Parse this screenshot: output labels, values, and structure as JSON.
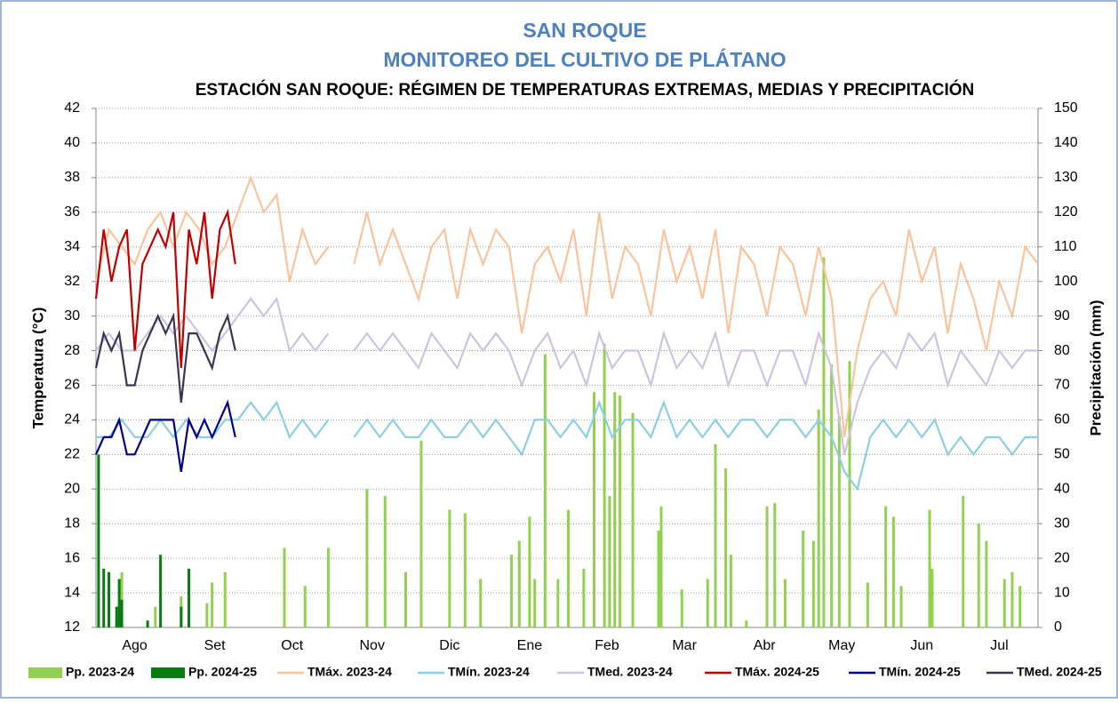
{
  "chart_data": {
    "type": "line",
    "title": "SAN ROQUE",
    "subtitle": "MONITOREO DEL CULTIVO DE PLÁTANO",
    "heading": "ESTACIÓN SAN ROQUE: RÉGIMEN DE TEMPERATURAS EXTREMAS, MEDIAS Y PRECIPITACIÓN",
    "ylabel": "Temperatura (°C)",
    "y2label": "Precipitación (mm)",
    "xlim": [
      0,
      365
    ],
    "xticks": [
      {
        "value": 15,
        "label": "Ago"
      },
      {
        "value": 46,
        "label": "Set"
      },
      {
        "value": 76,
        "label": "Oct"
      },
      {
        "value": 107,
        "label": "Nov"
      },
      {
        "value": 137,
        "label": "Dic"
      },
      {
        "value": 168,
        "label": "Ene"
      },
      {
        "value": 198,
        "label": "Feb"
      },
      {
        "value": 228,
        "label": "Mar"
      },
      {
        "value": 259,
        "label": "Abr"
      },
      {
        "value": 289,
        "label": "May"
      },
      {
        "value": 320,
        "label": "Jun"
      },
      {
        "value": 350,
        "label": "Jul"
      }
    ],
    "ylim": [
      12,
      42
    ],
    "yticks": [
      12,
      14,
      16,
      18,
      20,
      22,
      24,
      26,
      28,
      30,
      32,
      34,
      36,
      38,
      40,
      42
    ],
    "y2lim": [
      0,
      150
    ],
    "y2ticks": [
      0,
      10,
      20,
      30,
      40,
      50,
      60,
      70,
      80,
      90,
      100,
      110,
      120,
      130,
      140,
      150
    ],
    "grid": true,
    "series": [
      {
        "name": "Pp. 2023-24",
        "type": "bar",
        "axis": "y2",
        "color": "#92d050",
        "x": [
          8,
          10,
          23,
          33,
          43,
          45,
          50,
          73,
          81,
          90,
          105,
          112,
          120,
          126,
          137,
          143,
          149,
          161,
          164,
          168,
          170,
          174,
          179,
          183,
          189,
          193,
          197,
          199,
          201,
          203,
          208,
          218,
          219,
          227,
          237,
          240,
          244,
          246,
          252,
          260,
          263,
          267,
          274,
          278,
          280,
          282,
          285,
          288,
          292,
          299,
          306,
          309,
          312,
          323,
          324,
          336,
          342,
          345,
          352,
          355,
          358
        ],
        "values": [
          2,
          16,
          6,
          9,
          7,
          13,
          16,
          23,
          12,
          23,
          40,
          38,
          16,
          54,
          34,
          33,
          14,
          21,
          25,
          32,
          14,
          79,
          14,
          34,
          17,
          68,
          82,
          38,
          68,
          67,
          62,
          28,
          35,
          11,
          14,
          53,
          46,
          21,
          2,
          35,
          36,
          14,
          28,
          25,
          63,
          107,
          76,
          61,
          77,
          13,
          35,
          32,
          12,
          34,
          17,
          38,
          30,
          25,
          14,
          16,
          12
        ]
      },
      {
        "name": "Pp. 2024-25",
        "type": "bar",
        "axis": "y2",
        "color": "#0a7a12",
        "x": [
          1,
          3,
          5,
          8,
          9,
          10,
          20,
          25,
          33,
          36
        ],
        "values": [
          50,
          17,
          16,
          6,
          14,
          8,
          2,
          21,
          6,
          17
        ]
      },
      {
        "name": "TMáx. 2023-24",
        "type": "line",
        "color": "#f9c49c",
        "x": [
          0,
          5,
          10,
          15,
          20,
          25,
          30,
          35,
          40,
          45,
          50,
          55,
          60,
          65,
          70,
          75,
          80,
          85,
          90,
          95,
          100,
          105,
          110,
          115,
          120,
          125,
          130,
          135,
          140,
          145,
          150,
          155,
          160,
          165,
          170,
          175,
          180,
          185,
          190,
          195,
          200,
          205,
          210,
          215,
          220,
          225,
          230,
          235,
          240,
          245,
          250,
          255,
          260,
          265,
          270,
          275,
          280,
          285,
          290,
          295,
          300,
          305,
          310,
          315,
          320,
          325,
          330,
          335,
          340,
          345,
          350,
          355,
          360,
          365
        ],
        "values": [
          32,
          35,
          34,
          33,
          35,
          36,
          34,
          36,
          35,
          33,
          34,
          36,
          38,
          36,
          37,
          32,
          35,
          33,
          34,
          null,
          33,
          36,
          33,
          35,
          33,
          31,
          34,
          35,
          31,
          35,
          33,
          35,
          34,
          29,
          33,
          34,
          32,
          35,
          30,
          36,
          31,
          34,
          33,
          30,
          35,
          32,
          34,
          31,
          35,
          29,
          34,
          33,
          30,
          34,
          33,
          30,
          34,
          31,
          23,
          28,
          31,
          32,
          30,
          35,
          32,
          34,
          29,
          33,
          31,
          28,
          32,
          30,
          34,
          33
        ]
      },
      {
        "name": "TMín. 2023-24",
        "type": "line",
        "color": "#8ccfe0",
        "x": [
          0,
          5,
          10,
          15,
          20,
          25,
          30,
          35,
          40,
          45,
          50,
          55,
          60,
          65,
          70,
          75,
          80,
          85,
          90,
          95,
          100,
          105,
          110,
          115,
          120,
          125,
          130,
          135,
          140,
          145,
          150,
          155,
          160,
          165,
          170,
          175,
          180,
          185,
          190,
          195,
          200,
          205,
          210,
          215,
          220,
          225,
          230,
          235,
          240,
          245,
          250,
          255,
          260,
          265,
          270,
          275,
          280,
          285,
          290,
          295,
          300,
          305,
          310,
          315,
          320,
          325,
          330,
          335,
          340,
          345,
          350,
          355,
          360,
          365
        ],
        "values": [
          23,
          23,
          24,
          23,
          23,
          24,
          23,
          24,
          23,
          23,
          24,
          24,
          25,
          24,
          25,
          23,
          24,
          23,
          24,
          null,
          23,
          24,
          23,
          24,
          23,
          23,
          24,
          23,
          23,
          24,
          23,
          24,
          23,
          22,
          24,
          24,
          23,
          24,
          23,
          25,
          23,
          24,
          24,
          23,
          25,
          23,
          24,
          23,
          24,
          23,
          24,
          24,
          23,
          24,
          24,
          23,
          24,
          23,
          21,
          20,
          23,
          24,
          23,
          24,
          23,
          24,
          22,
          23,
          22,
          23,
          23,
          22,
          23,
          23
        ]
      },
      {
        "name": "TMed. 2023-24",
        "type": "line",
        "color": "#cdc3df",
        "x": [
          0,
          5,
          10,
          15,
          20,
          25,
          30,
          35,
          40,
          45,
          50,
          55,
          60,
          65,
          70,
          75,
          80,
          85,
          90,
          95,
          100,
          105,
          110,
          115,
          120,
          125,
          130,
          135,
          140,
          145,
          150,
          155,
          160,
          165,
          170,
          175,
          180,
          185,
          190,
          195,
          200,
          205,
          210,
          215,
          220,
          225,
          230,
          235,
          240,
          245,
          250,
          255,
          260,
          265,
          270,
          275,
          280,
          285,
          290,
          295,
          300,
          305,
          310,
          315,
          320,
          325,
          330,
          335,
          340,
          345,
          350,
          355,
          360,
          365
        ],
        "values": [
          28,
          29,
          28,
          28,
          29,
          30,
          29,
          30,
          29,
          28,
          29,
          30,
          31,
          30,
          31,
          28,
          29,
          28,
          29,
          null,
          28,
          29,
          28,
          29,
          28,
          27,
          29,
          28,
          27,
          29,
          28,
          29,
          28,
          26,
          28,
          29,
          27,
          28,
          26,
          29,
          27,
          28,
          28,
          26,
          29,
          27,
          28,
          27,
          29,
          26,
          28,
          28,
          26,
          28,
          28,
          26,
          29,
          27,
          22,
          25,
          27,
          28,
          27,
          29,
          28,
          29,
          26,
          28,
          27,
          26,
          28,
          27,
          28,
          28
        ]
      },
      {
        "name": "TMáx. 2024-25",
        "type": "line",
        "color": "#c00000",
        "x": [
          0,
          3,
          6,
          9,
          12,
          15,
          18,
          21,
          24,
          27,
          30,
          33,
          36,
          39,
          42,
          45,
          48,
          51,
          54
        ],
        "values": [
          31,
          35,
          32,
          34,
          35,
          28,
          33,
          34,
          35,
          34,
          36,
          27,
          35,
          33,
          36,
          31,
          35,
          36,
          33
        ]
      },
      {
        "name": "TMín. 2024-25",
        "type": "line",
        "color": "#00008b",
        "x": [
          0,
          3,
          6,
          9,
          12,
          15,
          18,
          21,
          24,
          27,
          30,
          33,
          36,
          39,
          42,
          45,
          48,
          51,
          54
        ],
        "values": [
          22,
          23,
          23,
          24,
          22,
          22,
          23,
          24,
          24,
          24,
          24,
          21,
          24,
          23,
          24,
          23,
          24,
          25,
          23
        ]
      },
      {
        "name": "TMed. 2024-25",
        "type": "line",
        "color": "#3c3552",
        "x": [
          0,
          3,
          6,
          9,
          12,
          15,
          18,
          21,
          24,
          27,
          30,
          33,
          36,
          39,
          42,
          45,
          48,
          51,
          54
        ],
        "values": [
          27,
          29,
          28,
          29,
          26,
          26,
          28,
          29,
          30,
          29,
          30,
          25,
          29,
          29,
          28,
          27,
          29,
          30,
          28
        ]
      }
    ]
  }
}
